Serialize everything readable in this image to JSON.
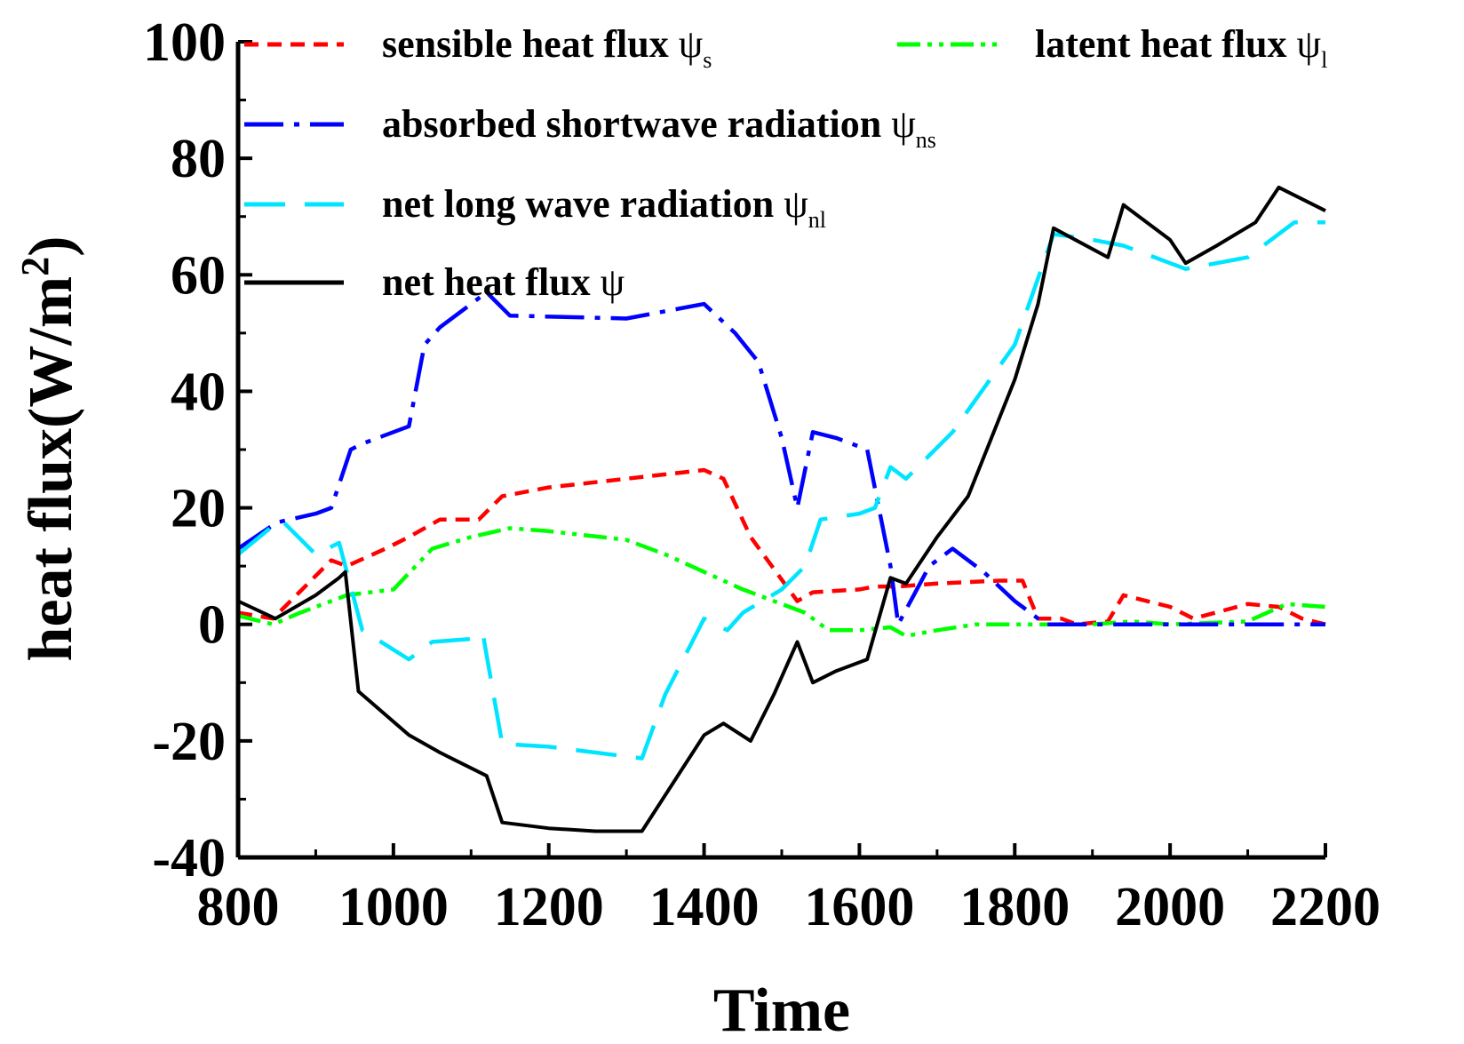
{
  "chart_data": {
    "type": "line",
    "title": "",
    "xlabel": "Time",
    "ylabel": "heat flux(W/m",
    "ylabel_sup": "2",
    "ylabel_close": ")",
    "xlim": [
      800,
      2200
    ],
    "ylim": [
      -40,
      100
    ],
    "x_ticks": [
      800,
      1000,
      1200,
      1400,
      1600,
      1800,
      2000,
      2200
    ],
    "x_tick_labels": [
      "800",
      "1000",
      "1200",
      "1400",
      "1600",
      "1800",
      "2000",
      "2200"
    ],
    "y_ticks": [
      -40,
      -20,
      0,
      20,
      40,
      60,
      80,
      100
    ],
    "y_tick_labels": [
      "-40",
      "-20",
      "0",
      "20",
      "40",
      "60",
      "80",
      "100"
    ],
    "grid": false,
    "series": [
      {
        "name": "sensible heat flux",
        "symbol": "ψ",
        "subscript": "s",
        "color": "#ff0000",
        "style": "short-dash",
        "points": [
          [
            800,
            2
          ],
          [
            845,
            1
          ],
          [
            860,
            3
          ],
          [
            920,
            11
          ],
          [
            940,
            10
          ],
          [
            990,
            13
          ],
          [
            1020,
            15
          ],
          [
            1060,
            18
          ],
          [
            1110,
            18
          ],
          [
            1140,
            22
          ],
          [
            1200,
            23.5
          ],
          [
            1300,
            25
          ],
          [
            1400,
            26.5
          ],
          [
            1425,
            25
          ],
          [
            1460,
            15
          ],
          [
            1520,
            4
          ],
          [
            1540,
            5.5
          ],
          [
            1600,
            6
          ],
          [
            1620,
            6.5
          ],
          [
            1650,
            6.5
          ],
          [
            1700,
            7
          ],
          [
            1780,
            7.5
          ],
          [
            1810,
            7.5
          ],
          [
            1830,
            1
          ],
          [
            1860,
            1
          ],
          [
            1880,
            0
          ],
          [
            1920,
            0.5
          ],
          [
            1940,
            5
          ],
          [
            2000,
            3
          ],
          [
            2030,
            1
          ],
          [
            2100,
            3.5
          ],
          [
            2140,
            3
          ],
          [
            2170,
            1
          ],
          [
            2200,
            0
          ]
        ]
      },
      {
        "name": "latent heat flux",
        "symbol": "ψ",
        "subscript": "l",
        "color": "#00ff00",
        "style": "dash-dot-dot",
        "points": [
          [
            800,
            1.5
          ],
          [
            845,
            0
          ],
          [
            880,
            2
          ],
          [
            920,
            4
          ],
          [
            940,
            5
          ],
          [
            1000,
            6
          ],
          [
            1050,
            13
          ],
          [
            1100,
            15
          ],
          [
            1150,
            16.5
          ],
          [
            1200,
            16
          ],
          [
            1300,
            14.5
          ],
          [
            1350,
            12
          ],
          [
            1400,
            9
          ],
          [
            1450,
            6
          ],
          [
            1500,
            3.5
          ],
          [
            1530,
            2
          ],
          [
            1560,
            -1
          ],
          [
            1600,
            -1
          ],
          [
            1640,
            -0.5
          ],
          [
            1660,
            -2
          ],
          [
            1700,
            -1
          ],
          [
            1750,
            0
          ],
          [
            1800,
            0
          ],
          [
            1900,
            0
          ],
          [
            1950,
            0.5
          ],
          [
            2000,
            0
          ],
          [
            2100,
            0.5
          ],
          [
            2150,
            3.5
          ],
          [
            2200,
            3
          ]
        ]
      },
      {
        "name": "absorbed shortwave radiation",
        "symbol": "ψ",
        "subscript": "ns",
        "color": "#0000ff",
        "style": "long-dash-dot",
        "points": [
          [
            800,
            13
          ],
          [
            850,
            17.5
          ],
          [
            900,
            19
          ],
          [
            920,
            20
          ],
          [
            945,
            30
          ],
          [
            960,
            31
          ],
          [
            1020,
            34
          ],
          [
            1040,
            48
          ],
          [
            1060,
            51
          ],
          [
            1120,
            57
          ],
          [
            1150,
            53
          ],
          [
            1300,
            52.5
          ],
          [
            1400,
            55
          ],
          [
            1440,
            50
          ],
          [
            1470,
            45
          ],
          [
            1500,
            32
          ],
          [
            1520,
            20
          ],
          [
            1540,
            33
          ],
          [
            1570,
            32
          ],
          [
            1610,
            30
          ],
          [
            1640,
            10
          ],
          [
            1650,
            0
          ],
          [
            1670,
            5
          ],
          [
            1690,
            10
          ],
          [
            1720,
            13
          ],
          [
            1760,
            9
          ],
          [
            1800,
            4
          ],
          [
            1840,
            0
          ],
          [
            2000,
            0
          ],
          [
            2200,
            0
          ]
        ]
      },
      {
        "name": "net long wave radiation",
        "symbol": "ψ",
        "subscript": "nl",
        "color": "#00e5ff",
        "style": "long-dash",
        "points": [
          [
            800,
            12
          ],
          [
            855,
            18
          ],
          [
            900,
            12
          ],
          [
            930,
            14
          ],
          [
            960,
            -1
          ],
          [
            1020,
            -6
          ],
          [
            1050,
            -3
          ],
          [
            1100,
            -2.5
          ],
          [
            1115,
            -1.5
          ],
          [
            1140,
            -20.5
          ],
          [
            1200,
            -21
          ],
          [
            1320,
            -23
          ],
          [
            1350,
            -12
          ],
          [
            1400,
            1
          ],
          [
            1430,
            -1
          ],
          [
            1450,
            2
          ],
          [
            1500,
            6
          ],
          [
            1530,
            10
          ],
          [
            1550,
            18
          ],
          [
            1600,
            19
          ],
          [
            1620,
            20
          ],
          [
            1640,
            27
          ],
          [
            1660,
            25
          ],
          [
            1720,
            33
          ],
          [
            1800,
            48
          ],
          [
            1850,
            67
          ],
          [
            1900,
            66
          ],
          [
            1940,
            65
          ],
          [
            2020,
            61
          ],
          [
            2100,
            63
          ],
          [
            2160,
            69
          ],
          [
            2200,
            69
          ]
        ]
      },
      {
        "name": "net heat flux",
        "symbol": "ψ",
        "subscript": "",
        "color": "#000000",
        "style": "solid",
        "points": [
          [
            800,
            4
          ],
          [
            848,
            1
          ],
          [
            900,
            5
          ],
          [
            930,
            8
          ],
          [
            938,
            9
          ],
          [
            955,
            -11.5
          ],
          [
            1020,
            -19
          ],
          [
            1060,
            -22
          ],
          [
            1120,
            -26
          ],
          [
            1140,
            -34
          ],
          [
            1200,
            -35
          ],
          [
            1260,
            -35.5
          ],
          [
            1320,
            -35.5
          ],
          [
            1400,
            -19
          ],
          [
            1425,
            -17
          ],
          [
            1460,
            -20
          ],
          [
            1490,
            -12
          ],
          [
            1520,
            -3
          ],
          [
            1540,
            -10
          ],
          [
            1570,
            -8
          ],
          [
            1610,
            -6
          ],
          [
            1640,
            8
          ],
          [
            1660,
            7
          ],
          [
            1700,
            15
          ],
          [
            1740,
            22
          ],
          [
            1800,
            42
          ],
          [
            1830,
            55
          ],
          [
            1850,
            68
          ],
          [
            1920,
            63
          ],
          [
            1940,
            72
          ],
          [
            2000,
            66
          ],
          [
            2020,
            62
          ],
          [
            2060,
            65
          ],
          [
            2110,
            69
          ],
          [
            2140,
            75
          ],
          [
            2200,
            71
          ]
        ]
      }
    ]
  }
}
